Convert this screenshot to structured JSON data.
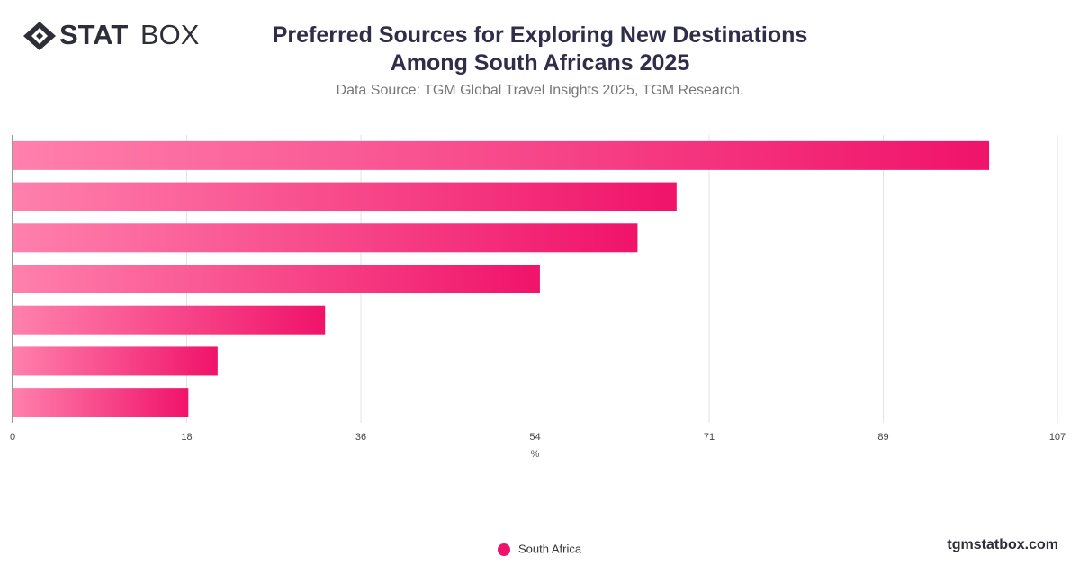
{
  "logo": {
    "bold": "STAT",
    "light": "BOX"
  },
  "footer": "tgmstatbox.com",
  "chart_data": {
    "type": "hbar",
    "title": "Preferred Sources for Exploring New Destinations Among South Africans 2025",
    "subtitle": "Data Source: TGM Global Travel Insights 2025, TGM Research.",
    "x_label": "%",
    "categories": [
      null,
      null,
      null,
      null,
      null,
      null,
      null
    ],
    "series": [
      {
        "name": "South Africa",
        "color": "#f0136a",
        "values": [
          100,
          68,
          64,
          54,
          32,
          21,
          18
        ]
      }
    ],
    "xlim": [
      0,
      107
    ],
    "xticks": [
      0,
      {
        "value": 17.83,
        "label": "18"
      },
      {
        "value": 35.67,
        "label": "36"
      },
      {
        "value": 53.5,
        "label": "54"
      },
      {
        "value": 71.33,
        "label": "71"
      },
      {
        "value": 89.17,
        "label": "89"
      },
      107
    ],
    "grid": true,
    "legend": "bottom"
  }
}
